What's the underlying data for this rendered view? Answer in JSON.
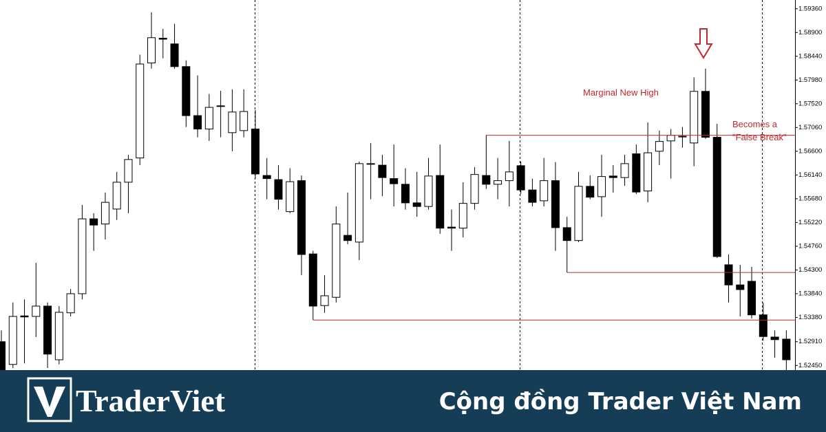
{
  "chart_data": {
    "type": "candlestick",
    "series": [
      {
        "open": [
          1.5291,
          1.5247,
          1.5341,
          1.534,
          1.536,
          1.5256,
          1.5347,
          1.5384,
          1.5529,
          1.5519,
          1.5548,
          1.56,
          1.5647,
          1.5831,
          1.5879,
          1.5868,
          1.5824,
          1.5729,
          1.5703,
          1.5747,
          1.5696,
          1.57,
          1.5703,
          1.5613,
          1.5605,
          1.5543,
          1.5603,
          1.5461,
          1.5361,
          1.5377,
          1.5497,
          1.5484,
          1.5636,
          1.5633,
          1.5607,
          1.5596,
          1.556,
          1.5553,
          1.5613,
          1.5513,
          1.5511,
          1.5559,
          1.5613,
          1.5596,
          1.5603,
          1.5632,
          1.5585,
          1.5564,
          1.5603,
          1.5512,
          1.5487,
          1.5592,
          1.5572,
          1.5612,
          1.5609,
          1.5655,
          1.5583,
          1.566,
          1.568,
          1.5688,
          1.5676,
          1.5776,
          1.5687,
          1.544,
          1.5401,
          1.5408,
          1.5343,
          1.53,
          1.5296
        ],
        "high": [
          1.5313,
          1.5367,
          1.5373,
          1.5444,
          1.5367,
          1.536,
          1.5393,
          1.5556,
          1.554,
          1.558,
          1.562,
          1.5653,
          1.5847,
          1.5929,
          1.5897,
          1.5907,
          1.5836,
          1.5807,
          1.5771,
          1.5777,
          1.578,
          1.578,
          1.574,
          1.5647,
          1.5633,
          1.5627,
          1.5613,
          1.5467,
          1.542,
          1.5553,
          1.558,
          1.564,
          1.5676,
          1.5653,
          1.5673,
          1.5627,
          1.562,
          1.5647,
          1.5673,
          1.5547,
          1.56,
          1.5629,
          1.5691,
          1.5647,
          1.568,
          1.564,
          1.5607,
          1.5647,
          1.5639,
          1.5533,
          1.562,
          1.5613,
          1.5653,
          1.5633,
          1.5653,
          1.5673,
          1.5716,
          1.57,
          1.5703,
          1.5707,
          1.5803,
          1.582,
          1.5713,
          1.546,
          1.544,
          1.5436,
          1.5367,
          1.5313,
          1.5313
        ],
        "low": [
          1.5236,
          1.524,
          1.5249,
          1.53,
          1.524,
          1.5247,
          1.534,
          1.5373,
          1.5467,
          1.5489,
          1.5527,
          1.554,
          1.5633,
          1.582,
          1.584,
          1.582,
          1.5707,
          1.5687,
          1.568,
          1.5687,
          1.566,
          1.5687,
          1.5607,
          1.5567,
          1.5547,
          1.554,
          1.542,
          1.5333,
          1.5347,
          1.5367,
          1.548,
          1.5449,
          1.5567,
          1.5573,
          1.5553,
          1.5547,
          1.5533,
          1.5547,
          1.55,
          1.5467,
          1.5493,
          1.5547,
          1.5587,
          1.5567,
          1.5553,
          1.5577,
          1.5553,
          1.5553,
          1.5467,
          1.5425,
          1.5484,
          1.5567,
          1.5533,
          1.558,
          1.5593,
          1.5577,
          1.5561,
          1.5633,
          1.5607,
          1.5667,
          1.5631,
          1.5684,
          1.5453,
          1.5367,
          1.534,
          1.5336,
          1.5293,
          1.526,
          1.5236
        ],
        "close": [
          1.5236,
          1.534,
          1.5339,
          1.536,
          1.5267,
          1.5348,
          1.5384,
          1.5529,
          1.5517,
          1.5561,
          1.56,
          1.5644,
          1.5829,
          1.588,
          1.5877,
          1.5824,
          1.5729,
          1.5703,
          1.5745,
          1.5748,
          1.5736,
          1.5737,
          1.5616,
          1.5607,
          1.5567,
          1.5601,
          1.546,
          1.536,
          1.538,
          1.5519,
          1.5487,
          1.5636,
          1.5635,
          1.5609,
          1.5597,
          1.556,
          1.5553,
          1.5612,
          1.5511,
          1.5511,
          1.5559,
          1.5615,
          1.5596,
          1.5603,
          1.562,
          1.5585,
          1.5561,
          1.5603,
          1.5512,
          1.5487,
          1.5592,
          1.5571,
          1.5611,
          1.5609,
          1.5636,
          1.5581,
          1.5657,
          1.5679,
          1.5691,
          1.5689,
          1.5776,
          1.5687,
          1.5456,
          1.5401,
          1.5392,
          1.5343,
          1.5301,
          1.5295,
          1.5256
        ]
      }
    ],
    "up_color": "#ffffff",
    "down_color": "#000000",
    "level_color": "#c0282d",
    "levels": [
      1.5691,
      1.5425,
      1.5333
    ],
    "ylim": [
      1.5236,
      1.5953
    ],
    "yticks": [
      {
        "value": 1.5936,
        "label": "1.59360"
      },
      {
        "value": 1.589,
        "label": "1.58900"
      },
      {
        "value": 1.5844,
        "label": "1.58440"
      },
      {
        "value": 1.5798,
        "label": "1.57980"
      },
      {
        "value": 1.5752,
        "label": "1.57520"
      },
      {
        "value": 1.5706,
        "label": "1.57060"
      },
      {
        "value": 1.566,
        "label": "1.56600"
      },
      {
        "value": 1.5614,
        "label": "1.56140"
      },
      {
        "value": 1.5568,
        "label": "1.55680"
      },
      {
        "value": 1.5522,
        "label": "1.55220"
      },
      {
        "value": 1.5476,
        "label": "1.54760"
      },
      {
        "value": 1.543,
        "label": "1.54300"
      },
      {
        "value": 1.5384,
        "label": "1.53840"
      },
      {
        "value": 1.5338,
        "label": "1.53380"
      },
      {
        "value": 1.5291,
        "label": "1.52910"
      },
      {
        "value": 1.5245,
        "label": "1.52450"
      }
    ],
    "annotations": [
      "Marginal New High",
      "Becomes a",
      "\"False Break\""
    ]
  },
  "footer": {
    "brand": "TraderViet",
    "tagline": "Cộng đồng Trader Việt Nam"
  }
}
